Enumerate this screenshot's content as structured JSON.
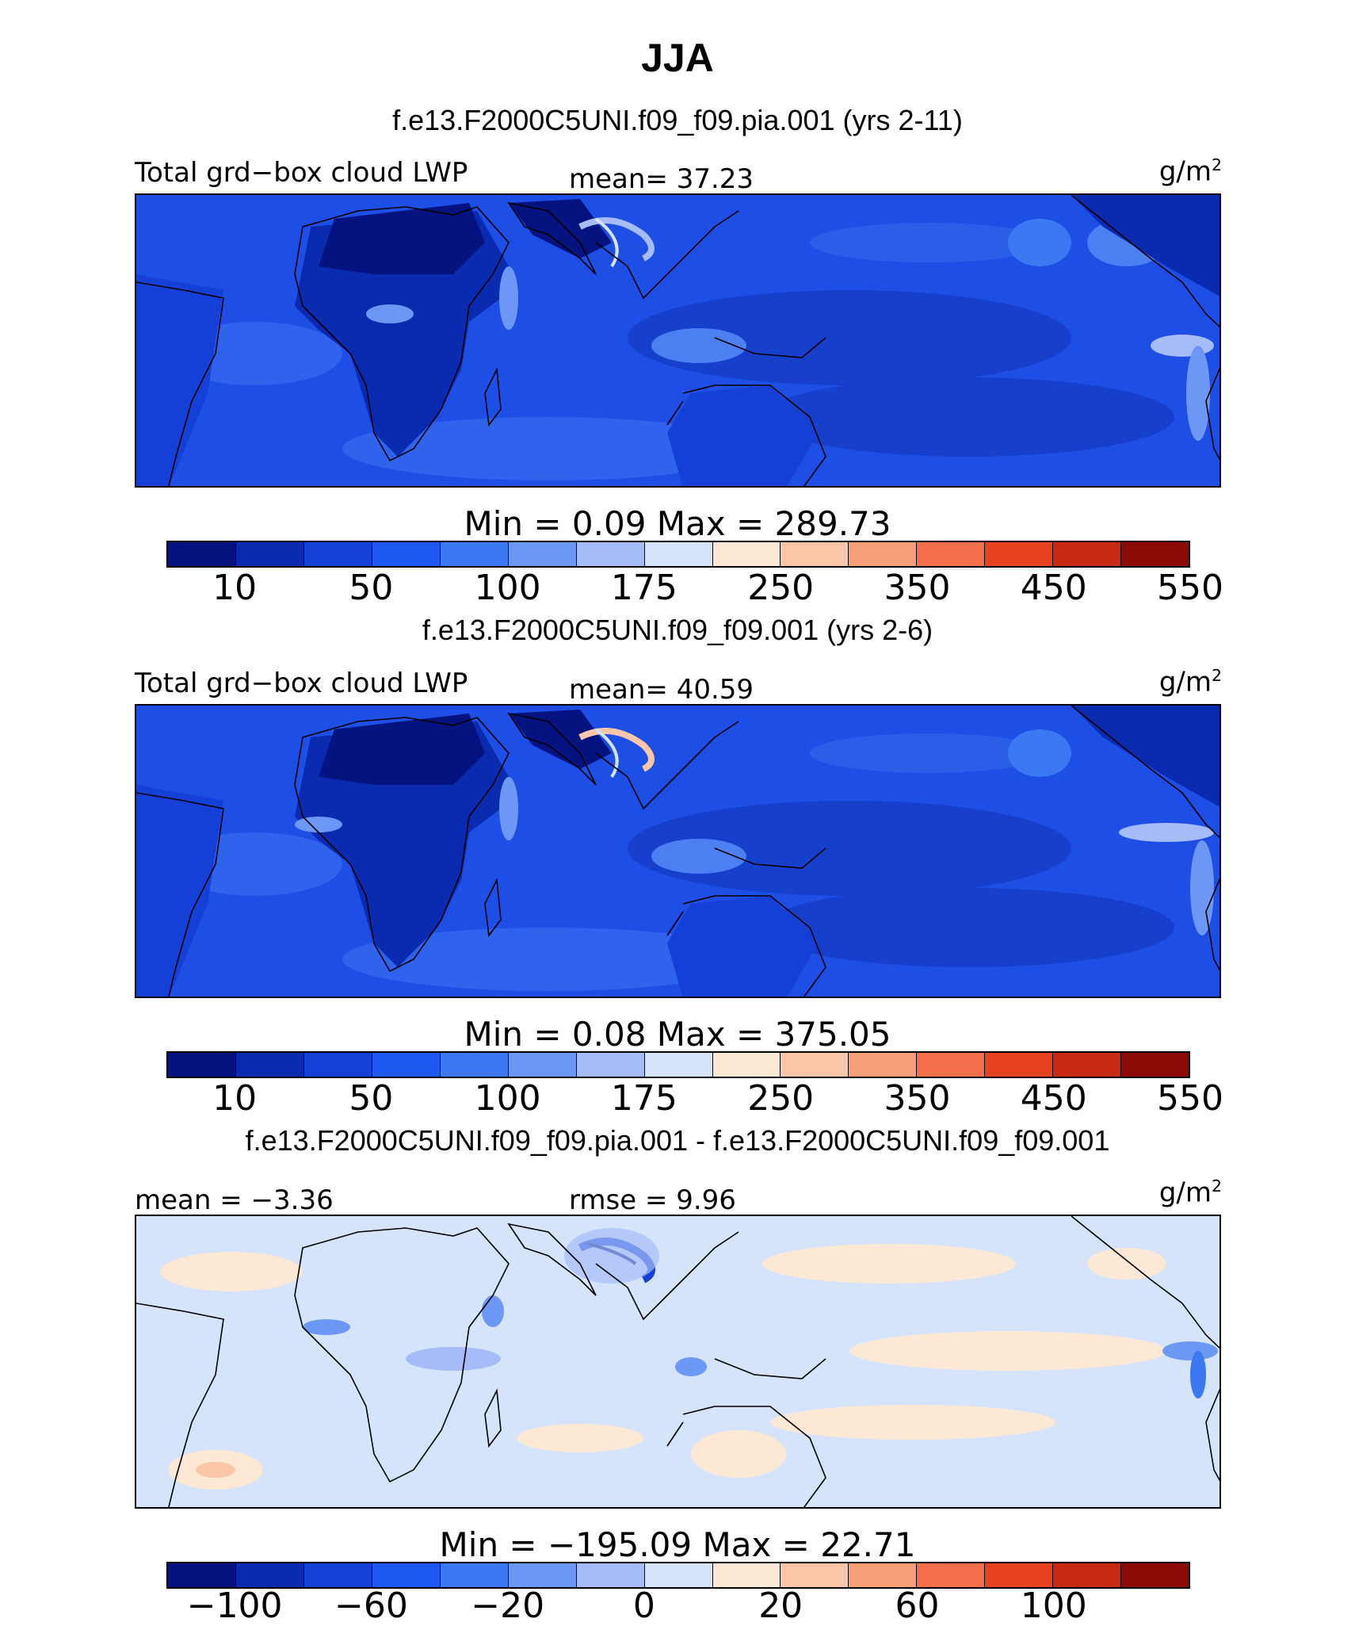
{
  "title": "JJA",
  "panels": [
    {
      "case_label": "f.e13.F2000C5UNI.f09_f09.pia.001 (yrs 2-11)",
      "left_label": "Total grd−box cloud LWP",
      "center_label": "mean=  37.23",
      "units_base": "g/m",
      "units_exp": "2",
      "minmax": "Min =    0.09  Max = 289.73",
      "colorbar": {
        "colors": [
          "#04137f",
          "#0a2ab0",
          "#1440d8",
          "#1d59f0",
          "#3b78f2",
          "#6d97f5",
          "#a5bcf8",
          "#d5e3fb",
          "#fde8d6",
          "#fbc5a8",
          "#f89e78",
          "#f4704a",
          "#e84320",
          "#c72a10",
          "#8e0b05"
        ],
        "ticks": [
          "10",
          "50",
          "100",
          "175",
          "250",
          "350",
          "450",
          "550"
        ]
      }
    },
    {
      "case_label": "f.e13.F2000C5UNI.f09_f09.001 (yrs 2-6)",
      "left_label": "Total grd−box cloud LWP",
      "center_label": "mean=  40.59",
      "units_base": "g/m",
      "units_exp": "2",
      "minmax": "Min =    0.08  Max = 375.05",
      "colorbar": {
        "colors": [
          "#04137f",
          "#0a2ab0",
          "#1440d8",
          "#1d59f0",
          "#3b78f2",
          "#6d97f5",
          "#a5bcf8",
          "#d5e3fb",
          "#fde8d6",
          "#fbc5a8",
          "#f89e78",
          "#f4704a",
          "#e84320",
          "#c72a10",
          "#8e0b05"
        ],
        "ticks": [
          "10",
          "50",
          "100",
          "175",
          "250",
          "350",
          "450",
          "550"
        ]
      }
    },
    {
      "case_label": "f.e13.F2000C5UNI.f09_f09.pia.001 - f.e13.F2000C5UNI.f09_f09.001",
      "left_label": "mean =  −3.36",
      "center_label": "rmse =   9.96",
      "units_base": "g/m",
      "units_exp": "2",
      "minmax": "Min = −195.09  Max =  22.71",
      "colorbar": {
        "colors": [
          "#04137f",
          "#0a2ab0",
          "#1440d8",
          "#1d59f0",
          "#3b78f2",
          "#6d97f5",
          "#a5bcf8",
          "#d5e3fb",
          "#fde8d6",
          "#fbc5a8",
          "#f89e78",
          "#f4704a",
          "#e84320",
          "#c72a10",
          "#8e0b05"
        ],
        "ticks": [
          "−100",
          "−60",
          "−20",
          "0",
          "20",
          "60",
          "100"
        ]
      }
    }
  ]
}
